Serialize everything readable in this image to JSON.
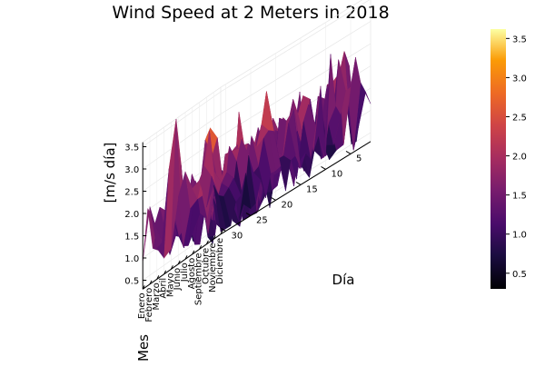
{
  "chart_data": {
    "type": "surface",
    "title": "Wind Speed at 2 Meters in 2018",
    "xlabel": "Mes",
    "ylabel": "Día",
    "zlabel": "[m/s día]",
    "month_labels": [
      "Enero",
      "Febrero",
      "Marzo",
      "Abril",
      "Mayo",
      "Junio",
      "Julio",
      "Agosto",
      "Septiembre",
      "Octubre",
      "Noviembre",
      "Diciembre"
    ],
    "day_ticks": [
      5,
      10,
      15,
      20,
      25,
      30
    ],
    "z_ticks": [
      "0.5",
      "1.0",
      "1.5",
      "2.0",
      "2.5",
      "3.0",
      "3.5"
    ],
    "zlim": [
      0.3,
      3.6
    ],
    "colorbar_ticks": [
      "0.5",
      "1.0",
      "1.5",
      "2.0",
      "2.5",
      "3.0",
      "3.5"
    ],
    "colorbar_range": [
      0.3,
      3.62
    ],
    "colormap": "inferno",
    "grid": true,
    "peak": {
      "month": "Mayo",
      "day": 30,
      "value": 3.6
    },
    "days": 31,
    "months": 12
  }
}
